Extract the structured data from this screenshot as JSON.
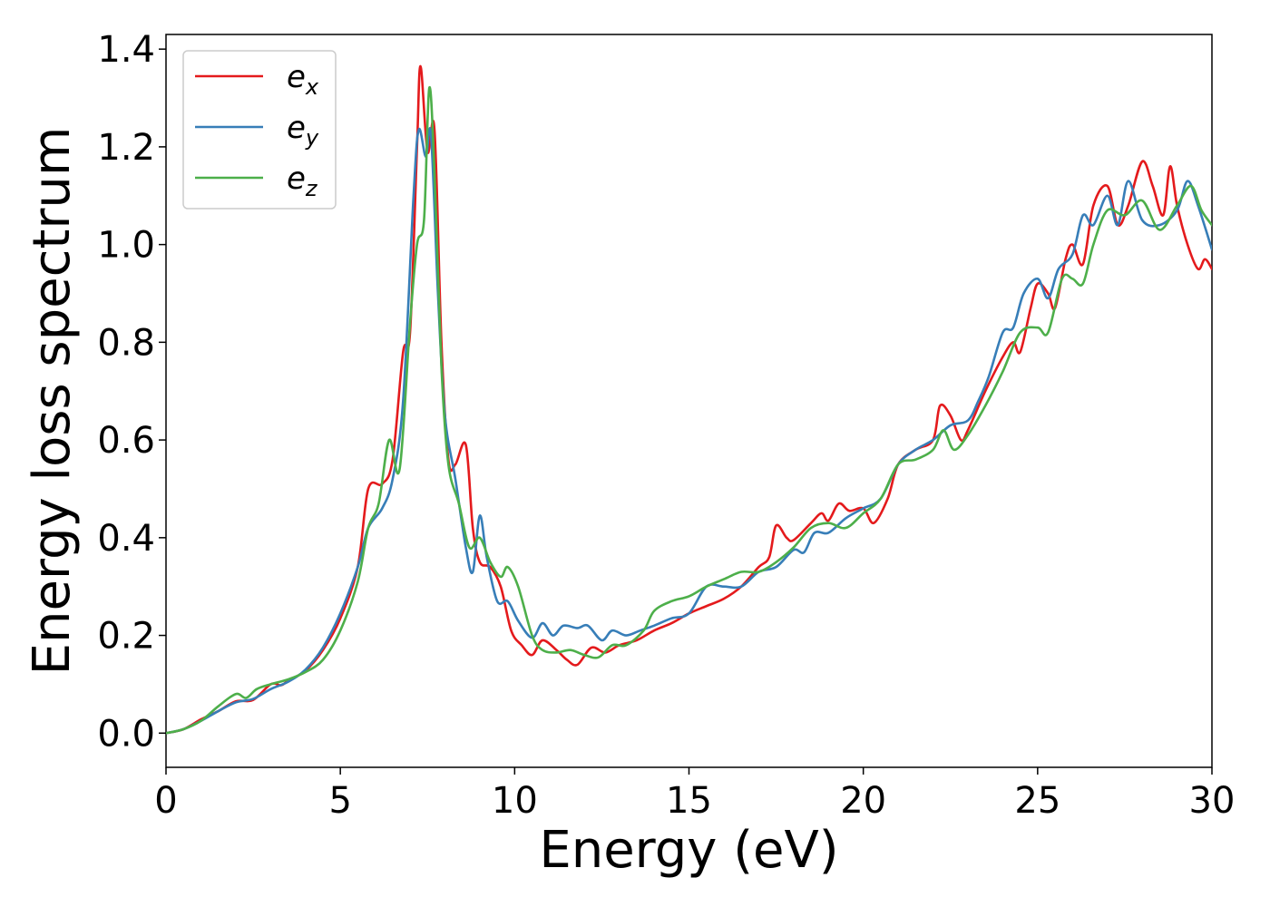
{
  "chart_data": {
    "type": "line",
    "title": "",
    "xlabel": "Energy (eV)",
    "ylabel": "Energy loss spectrum",
    "xlim": [
      0,
      30
    ],
    "ylim": [
      -0.07,
      1.43
    ],
    "xticks": [
      0,
      5,
      10,
      15,
      20,
      25,
      30
    ],
    "xtick_labels": [
      "0",
      "5",
      "10",
      "15",
      "20",
      "25",
      "30"
    ],
    "yticks": [
      0.0,
      0.2,
      0.4,
      0.6,
      0.8,
      1.0,
      1.2,
      1.4
    ],
    "ytick_labels": [
      "0.0",
      "0.2",
      "0.4",
      "0.6",
      "0.8",
      "1.0",
      "1.2",
      "1.4"
    ],
    "grid": false,
    "legend_position": "top-left",
    "series": [
      {
        "name": "e_x",
        "label_base": "e",
        "label_sub": "x",
        "color": "#e41a1c",
        "points": [
          [
            0,
            0
          ],
          [
            0.5,
            0.008
          ],
          [
            1,
            0.028
          ],
          [
            1.5,
            0.045
          ],
          [
            2,
            0.065
          ],
          [
            2.5,
            0.068
          ],
          [
            3,
            0.1
          ],
          [
            3.3,
            0.098
          ],
          [
            3.5,
            0.107
          ],
          [
            4,
            0.128
          ],
          [
            4.5,
            0.17
          ],
          [
            5,
            0.235
          ],
          [
            5.5,
            0.34
          ],
          [
            5.8,
            0.5
          ],
          [
            6.2,
            0.51
          ],
          [
            6.5,
            0.56
          ],
          [
            6.8,
            0.78
          ],
          [
            7,
            0.82
          ],
          [
            7.2,
            1.2
          ],
          [
            7.3,
            1.365
          ],
          [
            7.5,
            1.19
          ],
          [
            7.7,
            1.235
          ],
          [
            7.9,
            0.8
          ],
          [
            8.1,
            0.56
          ],
          [
            8.3,
            0.55
          ],
          [
            8.6,
            0.59
          ],
          [
            8.8,
            0.42
          ],
          [
            9,
            0.35
          ],
          [
            9.3,
            0.34
          ],
          [
            9.6,
            0.3
          ],
          [
            9.9,
            0.21
          ],
          [
            10.2,
            0.18
          ],
          [
            10.5,
            0.16
          ],
          [
            10.8,
            0.19
          ],
          [
            11.2,
            0.17
          ],
          [
            11.5,
            0.15
          ],
          [
            11.8,
            0.14
          ],
          [
            12.2,
            0.175
          ],
          [
            12.6,
            0.165
          ],
          [
            13,
            0.18
          ],
          [
            13.5,
            0.19
          ],
          [
            14,
            0.21
          ],
          [
            14.5,
            0.225
          ],
          [
            15,
            0.245
          ],
          [
            15.5,
            0.26
          ],
          [
            16,
            0.275
          ],
          [
            16.5,
            0.3
          ],
          [
            17,
            0.34
          ],
          [
            17.3,
            0.36
          ],
          [
            17.5,
            0.425
          ],
          [
            17.8,
            0.4
          ],
          [
            18,
            0.395
          ],
          [
            18.5,
            0.43
          ],
          [
            18.8,
            0.45
          ],
          [
            19,
            0.435
          ],
          [
            19.3,
            0.47
          ],
          [
            19.6,
            0.455
          ],
          [
            20,
            0.46
          ],
          [
            20.3,
            0.43
          ],
          [
            20.7,
            0.48
          ],
          [
            21,
            0.55
          ],
          [
            21.5,
            0.58
          ],
          [
            22,
            0.6
          ],
          [
            22.2,
            0.67
          ],
          [
            22.5,
            0.65
          ],
          [
            22.8,
            0.6
          ],
          [
            23,
            0.62
          ],
          [
            23.5,
            0.7
          ],
          [
            24,
            0.77
          ],
          [
            24.3,
            0.8
          ],
          [
            24.5,
            0.78
          ],
          [
            24.8,
            0.87
          ],
          [
            25,
            0.92
          ],
          [
            25.3,
            0.9
          ],
          [
            25.5,
            0.87
          ],
          [
            25.8,
            0.97
          ],
          [
            26,
            1.0
          ],
          [
            26.3,
            0.96
          ],
          [
            26.6,
            1.08
          ],
          [
            27,
            1.12
          ],
          [
            27.3,
            1.04
          ],
          [
            27.6,
            1.08
          ],
          [
            28,
            1.17
          ],
          [
            28.3,
            1.12
          ],
          [
            28.6,
            1.06
          ],
          [
            28.8,
            1.16
          ],
          [
            29,
            1.08
          ],
          [
            29.3,
            1.0
          ],
          [
            29.6,
            0.95
          ],
          [
            29.8,
            0.97
          ],
          [
            30,
            0.95
          ]
        ]
      },
      {
        "name": "e_y",
        "label_base": "e",
        "label_sub": "y",
        "color": "#377eb8",
        "points": [
          [
            0,
            0
          ],
          [
            0.5,
            0.008
          ],
          [
            1,
            0.025
          ],
          [
            1.5,
            0.045
          ],
          [
            2,
            0.063
          ],
          [
            2.5,
            0.07
          ],
          [
            3,
            0.09
          ],
          [
            3.5,
            0.105
          ],
          [
            4,
            0.13
          ],
          [
            4.5,
            0.175
          ],
          [
            5,
            0.245
          ],
          [
            5.5,
            0.34
          ],
          [
            5.8,
            0.42
          ],
          [
            6.2,
            0.46
          ],
          [
            6.5,
            0.52
          ],
          [
            6.8,
            0.68
          ],
          [
            7.1,
            1.1
          ],
          [
            7.25,
            1.235
          ],
          [
            7.45,
            1.18
          ],
          [
            7.6,
            1.225
          ],
          [
            7.8,
            0.9
          ],
          [
            8,
            0.65
          ],
          [
            8.3,
            0.52
          ],
          [
            8.6,
            0.38
          ],
          [
            8.8,
            0.33
          ],
          [
            9,
            0.445
          ],
          [
            9.2,
            0.36
          ],
          [
            9.5,
            0.27
          ],
          [
            9.8,
            0.27
          ],
          [
            10.1,
            0.23
          ],
          [
            10.5,
            0.195
          ],
          [
            10.8,
            0.225
          ],
          [
            11.1,
            0.2
          ],
          [
            11.4,
            0.22
          ],
          [
            11.8,
            0.215
          ],
          [
            12.1,
            0.22
          ],
          [
            12.5,
            0.19
          ],
          [
            12.8,
            0.21
          ],
          [
            13.2,
            0.2
          ],
          [
            13.6,
            0.21
          ],
          [
            14,
            0.22
          ],
          [
            14.5,
            0.235
          ],
          [
            15,
            0.245
          ],
          [
            15.5,
            0.3
          ],
          [
            16,
            0.3
          ],
          [
            16.5,
            0.3
          ],
          [
            17,
            0.33
          ],
          [
            17.5,
            0.34
          ],
          [
            18,
            0.375
          ],
          [
            18.3,
            0.37
          ],
          [
            18.6,
            0.41
          ],
          [
            19,
            0.41
          ],
          [
            19.5,
            0.44
          ],
          [
            20,
            0.46
          ],
          [
            20.5,
            0.48
          ],
          [
            21,
            0.55
          ],
          [
            21.5,
            0.58
          ],
          [
            22,
            0.6
          ],
          [
            22.5,
            0.63
          ],
          [
            23,
            0.64
          ],
          [
            23.3,
            0.68
          ],
          [
            23.6,
            0.73
          ],
          [
            24,
            0.82
          ],
          [
            24.3,
            0.83
          ],
          [
            24.6,
            0.9
          ],
          [
            25,
            0.93
          ],
          [
            25.3,
            0.89
          ],
          [
            25.6,
            0.95
          ],
          [
            26,
            0.98
          ],
          [
            26.3,
            1.06
          ],
          [
            26.6,
            1.04
          ],
          [
            27,
            1.1
          ],
          [
            27.3,
            1.04
          ],
          [
            27.6,
            1.13
          ],
          [
            28,
            1.05
          ],
          [
            28.5,
            1.04
          ],
          [
            29,
            1.07
          ],
          [
            29.3,
            1.13
          ],
          [
            29.6,
            1.08
          ],
          [
            30,
            0.99
          ]
        ]
      },
      {
        "name": "e_z",
        "label_base": "e",
        "label_sub": "z",
        "color": "#4daf4a",
        "points": [
          [
            0,
            0
          ],
          [
            0.5,
            0.008
          ],
          [
            1,
            0.025
          ],
          [
            1.5,
            0.055
          ],
          [
            2,
            0.08
          ],
          [
            2.3,
            0.072
          ],
          [
            2.6,
            0.09
          ],
          [
            3,
            0.1
          ],
          [
            3.5,
            0.11
          ],
          [
            4,
            0.125
          ],
          [
            4.5,
            0.15
          ],
          [
            5,
            0.21
          ],
          [
            5.5,
            0.31
          ],
          [
            5.8,
            0.42
          ],
          [
            6.1,
            0.47
          ],
          [
            6.4,
            0.6
          ],
          [
            6.7,
            0.54
          ],
          [
            7,
            0.84
          ],
          [
            7.2,
            1.0
          ],
          [
            7.4,
            1.05
          ],
          [
            7.55,
            1.32
          ],
          [
            7.7,
            1.15
          ],
          [
            7.9,
            0.75
          ],
          [
            8.1,
            0.55
          ],
          [
            8.4,
            0.47
          ],
          [
            8.7,
            0.38
          ],
          [
            9,
            0.4
          ],
          [
            9.3,
            0.35
          ],
          [
            9.6,
            0.32
          ],
          [
            9.8,
            0.34
          ],
          [
            10.1,
            0.3
          ],
          [
            10.5,
            0.2
          ],
          [
            10.8,
            0.17
          ],
          [
            11.2,
            0.165
          ],
          [
            11.6,
            0.17
          ],
          [
            12,
            0.16
          ],
          [
            12.4,
            0.155
          ],
          [
            12.8,
            0.18
          ],
          [
            13.2,
            0.18
          ],
          [
            13.7,
            0.21
          ],
          [
            14,
            0.25
          ],
          [
            14.5,
            0.27
          ],
          [
            15,
            0.28
          ],
          [
            15.5,
            0.3
          ],
          [
            16,
            0.315
          ],
          [
            16.5,
            0.33
          ],
          [
            17,
            0.33
          ],
          [
            17.5,
            0.35
          ],
          [
            18,
            0.38
          ],
          [
            18.5,
            0.42
          ],
          [
            19,
            0.43
          ],
          [
            19.5,
            0.42
          ],
          [
            20,
            0.45
          ],
          [
            20.5,
            0.48
          ],
          [
            21,
            0.55
          ],
          [
            21.5,
            0.56
          ],
          [
            22,
            0.58
          ],
          [
            22.3,
            0.62
          ],
          [
            22.6,
            0.58
          ],
          [
            23,
            0.61
          ],
          [
            23.5,
            0.67
          ],
          [
            24,
            0.74
          ],
          [
            24.5,
            0.82
          ],
          [
            25,
            0.83
          ],
          [
            25.3,
            0.82
          ],
          [
            25.7,
            0.93
          ],
          [
            26,
            0.93
          ],
          [
            26.3,
            0.92
          ],
          [
            26.6,
            1.0
          ],
          [
            27,
            1.07
          ],
          [
            27.5,
            1.06
          ],
          [
            28,
            1.09
          ],
          [
            28.5,
            1.03
          ],
          [
            29,
            1.08
          ],
          [
            29.4,
            1.12
          ],
          [
            29.7,
            1.07
          ],
          [
            30,
            1.04
          ]
        ]
      }
    ]
  }
}
